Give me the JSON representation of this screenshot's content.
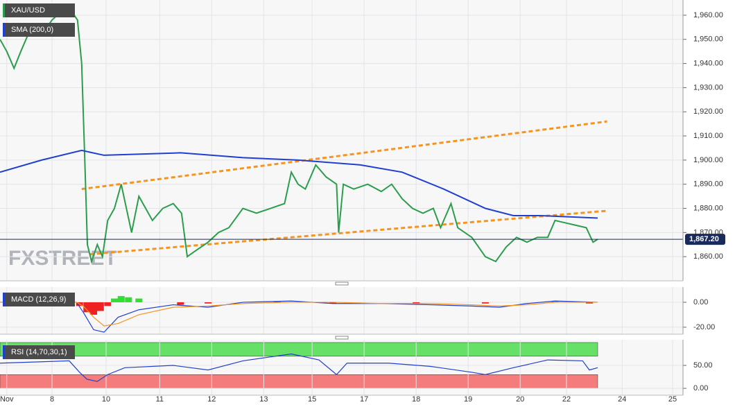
{
  "charts": [
    {
      "type": "line",
      "watermark": "FXSTREET",
      "xlim": [
        0,
        13.13
      ],
      "ylim": [
        1850,
        1966.3
      ],
      "yticks": [
        {
          "value": 1860,
          "label": "1,860.00"
        },
        {
          "value": 1870,
          "label": "1,870.00"
        },
        {
          "value": 1880,
          "label": "1,880.00"
        },
        {
          "value": 1890,
          "label": "1,890.00"
        },
        {
          "value": 1900,
          "label": "1,900.00"
        },
        {
          "value": 1910,
          "label": "1,910.00"
        },
        {
          "value": 1920,
          "label": "1,920.00"
        },
        {
          "value": 1930,
          "label": "1,930.00"
        },
        {
          "value": 1940,
          "label": "1,940.00"
        },
        {
          "value": 1950,
          "label": "1,950.00"
        },
        {
          "value": 1960,
          "label": "1,960.00"
        }
      ],
      "grid": true,
      "last_price": {
        "value": 1867.2,
        "label": "1,867.20"
      },
      "series": [
        {
          "name": "XAU/USD",
          "color": "#2a9d4a",
          "x": [
            0,
            0.13,
            0.27,
            0.4,
            0.6,
            0.8,
            1,
            1.2,
            1.33,
            1.49,
            1.57,
            1.63,
            1.68,
            1.76,
            1.87,
            1.97,
            2.07,
            2.2,
            2.33,
            2.43,
            2.53,
            2.67,
            2.8,
            2.93,
            3.13,
            3.33,
            3.49,
            3.6,
            3.73,
            4,
            4.2,
            4.4,
            4.67,
            4.93,
            5.2,
            5.47,
            5.6,
            5.73,
            5.87,
            6.07,
            6.27,
            6.47,
            6.51,
            6.6,
            6.8,
            7.07,
            7.33,
            7.53,
            7.73,
            7.93,
            8.13,
            8.33,
            8.47,
            8.67,
            8.8,
            9.07,
            9.33,
            9.53,
            9.73,
            9.93,
            10.13,
            10.33,
            10.53,
            10.67,
            10.87,
            11.07,
            11.27,
            11.4,
            11.49
          ],
          "values": [
            1950,
            1945,
            1938,
            1945,
            1955,
            1952,
            1958,
            1962,
            1963,
            1958,
            1940,
            1900,
            1865,
            1858,
            1865,
            1860,
            1875,
            1880,
            1890,
            1880,
            1870,
            1885,
            1880,
            1875,
            1880,
            1882,
            1878,
            1860,
            1862,
            1866,
            1870,
            1872,
            1880,
            1878,
            1880,
            1882,
            1895,
            1890,
            1888,
            1898,
            1893,
            1890,
            1870,
            1890,
            1888,
            1890,
            1887,
            1890,
            1884,
            1880,
            1878,
            1880,
            1872,
            1882,
            1872,
            1868,
            1860,
            1858,
            1864,
            1868,
            1866,
            1868,
            1868,
            1875,
            1874,
            1873,
            1872,
            1866,
            1867.2
          ]
        },
        {
          "name": "SMA (200,0)",
          "color": "#1f3fcf",
          "x": [
            0,
            0.8,
            1.57,
            2,
            3.47,
            4.67,
            5.73,
            6.93,
            7.73,
            8.53,
            9.33,
            9.87,
            10.4,
            11.49
          ],
          "values": [
            1895,
            1900,
            1904,
            1902,
            1903,
            1901,
            1900,
            1898,
            1895,
            1888,
            1880,
            1877,
            1877,
            1876
          ]
        }
      ],
      "channel": {
        "color": "#f7931e",
        "lines": [
          {
            "x": [
              1.57,
              11.67
            ],
            "values": [
              1888,
              1916
            ]
          },
          {
            "x": [
              1.73,
              11.67
            ],
            "values": [
              1861,
              1879
            ]
          }
        ]
      }
    },
    {
      "type": "line",
      "title": "MACD (12,26,9)",
      "xlim": [
        0,
        13.13
      ],
      "ylim": [
        -25.6,
        12.2
      ],
      "yticks": [
        {
          "value": 0,
          "label": "0.00"
        },
        {
          "value": -20,
          "label": "-20.00"
        }
      ],
      "grid": true,
      "series": [
        {
          "color": "#1f3fcf",
          "x": [
            0,
            1.47,
            1.6,
            1.8,
            2,
            2.27,
            2.67,
            3.33,
            4,
            4.67,
            5.6,
            6.4,
            7.33,
            8.27,
            9.07,
            9.6,
            10.13,
            10.67,
            11.49
          ],
          "values": [
            0,
            0,
            -8,
            -22,
            -24,
            -12,
            -6,
            -2,
            -4,
            0,
            1,
            -1,
            -1,
            -2,
            -3,
            -4,
            -1,
            1,
            0
          ]
        },
        {
          "color": "#f7931e",
          "x": [
            0,
            1.47,
            1.6,
            1.8,
            2,
            2.27,
            2.67,
            3.33,
            4,
            4.67,
            5.6,
            6.4,
            7.33,
            8.27,
            9.07,
            9.6,
            10.13,
            10.67,
            11.49
          ],
          "values": [
            0,
            0,
            -3,
            -12,
            -19,
            -17,
            -10,
            -4,
            -3,
            -1,
            0,
            0,
            -1,
            -1,
            -2,
            -3,
            -2,
            0,
            0
          ]
        }
      ],
      "histogram": {
        "pos_color": "#33dd33",
        "neg_color": "#ee2222",
        "x": [
          1.53,
          1.67,
          1.8,
          1.93,
          2.07,
          2.2,
          2.33,
          2.47,
          2.67,
          3.47,
          4,
          5.33,
          6.4,
          8,
          9.33,
          10.67,
          11.33
        ],
        "values": [
          -3,
          -8,
          -10,
          -7,
          -3,
          3,
          5,
          4,
          3,
          -2,
          -1,
          1,
          -1,
          -1,
          -1,
          1,
          -1
        ]
      }
    },
    {
      "type": "line",
      "title": "RSI (14,70,30,1)",
      "xlim": [
        0,
        13.13
      ],
      "ylim": [
        -15,
        106
      ],
      "yticks": [
        {
          "value": 0,
          "label": "0.00"
        },
        {
          "value": 50,
          "label": "50.00"
        }
      ],
      "grid": true,
      "zones": [
        {
          "from": 70,
          "to": 100,
          "color": "#66e066"
        },
        {
          "from": 0,
          "to": 30,
          "color": "#f47c7c"
        }
      ],
      "series": [
        {
          "color": "#1f3fcf",
          "x": [
            0,
            0.8,
            1.33,
            1.53,
            1.67,
            1.87,
            2.07,
            2.4,
            3.33,
            4,
            4.67,
            5.6,
            6.13,
            6.47,
            6.67,
            7.47,
            8.27,
            9.07,
            9.33,
            9.87,
            10.53,
            11.2,
            11.33,
            11.49
          ],
          "values": [
            55,
            58,
            60,
            35,
            20,
            15,
            30,
            45,
            50,
            40,
            60,
            75,
            62,
            30,
            55,
            55,
            48,
            35,
            30,
            45,
            62,
            60,
            40,
            45
          ]
        }
      ],
      "xticks": [
        {
          "value": 0.13,
          "label": "Nov"
        },
        {
          "value": 1,
          "label": "8"
        },
        {
          "value": 2.04,
          "label": "10"
        },
        {
          "value": 3.07,
          "label": "11"
        },
        {
          "value": 4.07,
          "label": "12"
        },
        {
          "value": 5.07,
          "label": "13"
        },
        {
          "value": 6,
          "label": "15"
        },
        {
          "value": 7,
          "label": "17"
        },
        {
          "value": 8,
          "label": "18"
        },
        {
          "value": 9,
          "label": "19"
        },
        {
          "value": 10,
          "label": "20"
        },
        {
          "value": 10.89,
          "label": "22"
        },
        {
          "value": 11.96,
          "label": "24"
        },
        {
          "value": 12.93,
          "label": "25"
        }
      ]
    }
  ]
}
